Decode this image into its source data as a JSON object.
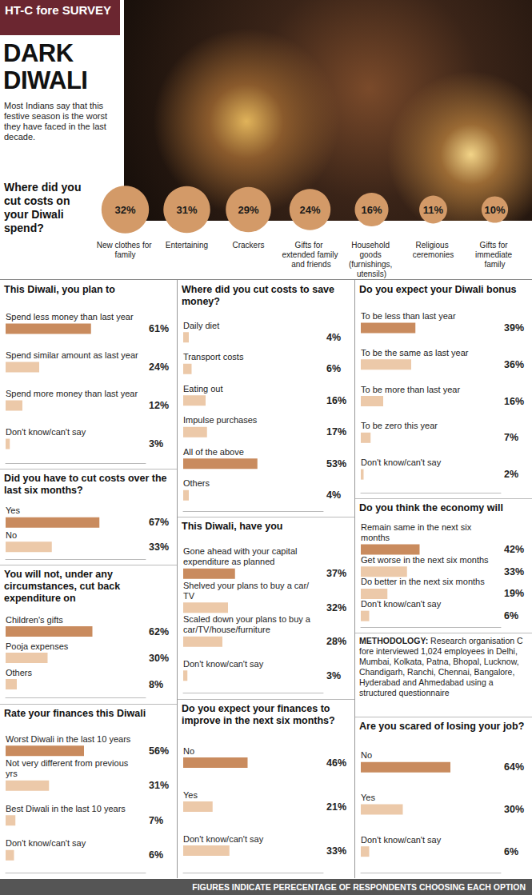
{
  "header": {
    "tag": "HT-C fore SURVEY",
    "title": "DARK DIWALI",
    "subtitle": "Most Indians say that this festive season is the worst they have faced in the last decade."
  },
  "chart_data": [
    {
      "type": "bubble",
      "title": "Where did you cut costs on your Diwali spend?",
      "categories": [
        "New clothes for family",
        "Entertaining",
        "Crackers",
        "Gifts for extended family and friends",
        "Household goods (furnishings, utensils)",
        "Religious ceremonies",
        "Gifts for immediate family"
      ],
      "values": [
        32,
        31,
        29,
        24,
        16,
        11,
        10
      ],
      "value_labels": [
        "32%",
        "31%",
        "29%",
        "24%",
        "16%",
        "11%",
        "10%"
      ],
      "color": "#d39a68",
      "data_labels": true,
      "tick_labels": "x"
    },
    {
      "type": "bar",
      "orientation": "horizontal",
      "title": "This Diwali, you plan to",
      "categories": [
        "Spend less money than last year",
        "Spend similar amount as last year",
        "Spend more money than last year",
        "Don't know/can't say"
      ],
      "values": [
        61,
        24,
        12,
        3
      ],
      "value_labels": [
        "61%",
        "24%",
        "12%",
        "3%"
      ],
      "colors": [
        "#c98b5e",
        "#ecc9a9",
        "#ecc9a9",
        "#ecc9a9"
      ],
      "xlim": [
        0,
        100
      ],
      "tick_labels": false,
      "data_labels": true
    },
    {
      "type": "bar",
      "orientation": "horizontal",
      "title": "Did you have to cut costs over the last six months?",
      "categories": [
        "Yes",
        "No"
      ],
      "values": [
        67,
        33
      ],
      "value_labels": [
        "67%",
        "33%"
      ],
      "colors": [
        "#c98b5e",
        "#ecc9a9"
      ],
      "xlim": [
        0,
        100
      ],
      "tick_labels": false,
      "data_labels": true
    },
    {
      "type": "bar",
      "orientation": "horizontal",
      "title": "You will not, under any circumstances, cut back expenditure on",
      "categories": [
        "Children's gifts",
        "Pooja expenses",
        "Others"
      ],
      "values": [
        62,
        30,
        8
      ],
      "value_labels": [
        "62%",
        "30%",
        "8%"
      ],
      "colors": [
        "#c98b5e",
        "#ecc9a9",
        "#ecc9a9"
      ],
      "xlim": [
        0,
        100
      ],
      "tick_labels": false,
      "data_labels": true
    },
    {
      "type": "bar",
      "orientation": "horizontal",
      "title": "Rate your finances this Diwali",
      "categories": [
        "Worst Diwali in the last 10 years",
        "Not very different from previous yrs",
        "Best Diwali in the last 10 years",
        "Don't know/can't say"
      ],
      "values": [
        56,
        31,
        7,
        6
      ],
      "value_labels": [
        "56%",
        "31%",
        "7%",
        "6%"
      ],
      "colors": [
        "#c98b5e",
        "#ecc9a9",
        "#ecc9a9",
        "#ecc9a9"
      ],
      "xlim": [
        0,
        100
      ],
      "tick_labels": false,
      "data_labels": true
    },
    {
      "type": "bar",
      "orientation": "horizontal",
      "title": "Where did you cut costs to save money?",
      "categories": [
        "Daily diet",
        "Transport costs",
        "Eating out",
        "Impulse purchases",
        "All of the above",
        "Others"
      ],
      "values": [
        4,
        6,
        16,
        17,
        53,
        4
      ],
      "value_labels": [
        "4%",
        "6%",
        "16%",
        "17%",
        "53%",
        "4%"
      ],
      "colors": [
        "#ecc9a9",
        "#ecc9a9",
        "#ecc9a9",
        "#ecc9a9",
        "#c98b5e",
        "#ecc9a9"
      ],
      "xlim": [
        0,
        100
      ],
      "tick_labels": false,
      "data_labels": true
    },
    {
      "type": "bar",
      "orientation": "horizontal",
      "title": "This Diwali, have you",
      "categories": [
        "Gone ahead with your capital expenditure as planned",
        "Shelved your plans to buy a car/TV",
        "Scaled down your plans to buy a car/TV/house/furniture",
        "Don't know/can't say"
      ],
      "values": [
        37,
        32,
        28,
        3
      ],
      "value_labels": [
        "37%",
        "32%",
        "28%",
        "3%"
      ],
      "colors": [
        "#c98b5e",
        "#ecc9a9",
        "#ecc9a9",
        "#ecc9a9"
      ],
      "xlim": [
        0,
        100
      ],
      "tick_labels": false,
      "data_labels": true
    },
    {
      "type": "bar",
      "orientation": "horizontal",
      "title": "Do you expect your finances to improve in the next six months?",
      "categories": [
        "No",
        "Yes",
        "Don't know/can't say"
      ],
      "values": [
        46,
        21,
        33
      ],
      "value_labels": [
        "46%",
        "21%",
        "33%"
      ],
      "colors": [
        "#c98b5e",
        "#ecc9a9",
        "#ecc9a9"
      ],
      "xlim": [
        0,
        100
      ],
      "tick_labels": false,
      "data_labels": true
    },
    {
      "type": "bar",
      "orientation": "horizontal",
      "title": "Do you expect your Diwali bonus",
      "categories": [
        "To be less than last year",
        "To be the same as last year",
        "To be more than last year",
        "To be zero this year",
        "Don't know/can't say"
      ],
      "values": [
        39,
        36,
        16,
        7,
        2
      ],
      "value_labels": [
        "39%",
        "36%",
        "16%",
        "7%",
        "2%"
      ],
      "colors": [
        "#c98b5e",
        "#ecc9a9",
        "#ecc9a9",
        "#ecc9a9",
        "#ecc9a9"
      ],
      "xlim": [
        0,
        100
      ],
      "tick_labels": false,
      "data_labels": true
    },
    {
      "type": "bar",
      "orientation": "horizontal",
      "title": "Do you think the economy will",
      "categories": [
        "Remain same in the next six months",
        "Get worse in the next six months",
        "Do better in the next six months",
        "Don't know/can't say"
      ],
      "values": [
        42,
        33,
        19,
        6
      ],
      "value_labels": [
        "42%",
        "33%",
        "19%",
        "6%"
      ],
      "colors": [
        "#c98b5e",
        "#ecc9a9",
        "#ecc9a9",
        "#ecc9a9"
      ],
      "xlim": [
        0,
        100
      ],
      "tick_labels": false,
      "data_labels": true
    },
    {
      "type": "bar",
      "orientation": "horizontal",
      "title": "Are you scared of losing your job?",
      "categories": [
        "No",
        "Yes",
        "Don't know/can't say"
      ],
      "values": [
        64,
        30,
        6
      ],
      "value_labels": [
        "64%",
        "30%",
        "6%"
      ],
      "colors": [
        "#c98b5e",
        "#ecc9a9",
        "#ecc9a9"
      ],
      "xlim": [
        0,
        100
      ],
      "tick_labels": false,
      "data_labels": true
    }
  ],
  "methodology": {
    "label": "METHODOLOGY:",
    "text": "Research organisation C fore interviewed 1,024 employees in Delhi, Mumbai, Kolkata, Patna, Bhopal, Lucknow, Chandigarh, Ranchi, Chennai, Bangalore, Hyderabad and Ahmedabad using a structured questionnaire"
  },
  "footer": "FIGURES INDICATE PERECENTAGE OF RESPONDENTS CHOOSING EACH OPTION"
}
